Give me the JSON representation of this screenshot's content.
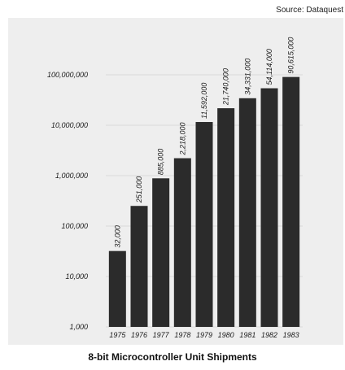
{
  "source": "Source: Dataquest",
  "chart_data": {
    "type": "bar",
    "title": "8-bit Microcontroller Unit Shipments",
    "xlabel": "",
    "ylabel": "",
    "scale": "log",
    "ylim": [
      1000,
      100000000
    ],
    "grid": true,
    "legend": "none",
    "bar_color": "#2b2b2b",
    "yticks": [
      1000,
      10000,
      100000,
      1000000,
      10000000,
      100000000
    ],
    "ytick_labels": [
      "1,000",
      "10,000",
      "100,000",
      "1,000,000",
      "10,000,000",
      "100,000,000"
    ],
    "categories": [
      "1975",
      "1976",
      "1977",
      "1978",
      "1979",
      "1980",
      "1981",
      "1982",
      "1983"
    ],
    "values": [
      32000,
      251000,
      885000,
      2218000,
      11592000,
      21740000,
      34331000,
      54114000,
      90615000
    ],
    "data_labels": [
      "32,000",
      "251,000",
      "885,000",
      "2,218,000",
      "11,592,000",
      "21,740,000",
      "34,331,000",
      "54,114,000",
      "90,615,000"
    ]
  }
}
